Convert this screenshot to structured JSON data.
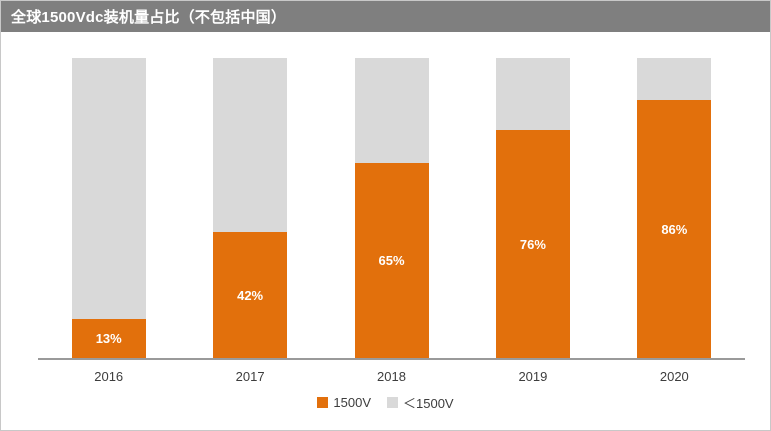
{
  "header": {
    "title": "全球1500Vdc装机量占比（不包括中国）",
    "bg_color": "#7f7f7f",
    "text_color": "#ffffff"
  },
  "chart_data": {
    "type": "bar",
    "stacked": true,
    "title": "全球1500Vdc装机量占比（不包括中国）",
    "categories": [
      "2016",
      "2017",
      "2018",
      "2019",
      "2020"
    ],
    "series": [
      {
        "name": "1500V",
        "color": "#e2700c",
        "values": [
          13,
          42,
          65,
          76,
          86
        ],
        "value_labels": [
          "13%",
          "42%",
          "65%",
          "76%",
          "86%"
        ]
      },
      {
        "name": "＜1500V",
        "color": "#d9d9d9",
        "values": [
          87,
          58,
          35,
          24,
          14
        ],
        "value_labels": [
          "",
          "",
          "",
          "",
          ""
        ]
      }
    ],
    "xlabel": "",
    "ylabel": "",
    "ylim": [
      0,
      100
    ],
    "grid": false,
    "legend_position": "bottom",
    "value_label_color": "#ffffff",
    "axis_line_color": "#9a9a9a"
  },
  "legend": {
    "items": [
      {
        "label": "1500V",
        "color": "#e2700c"
      },
      {
        "label": "＜1500V",
        "color": "#d9d9d9"
      }
    ]
  }
}
